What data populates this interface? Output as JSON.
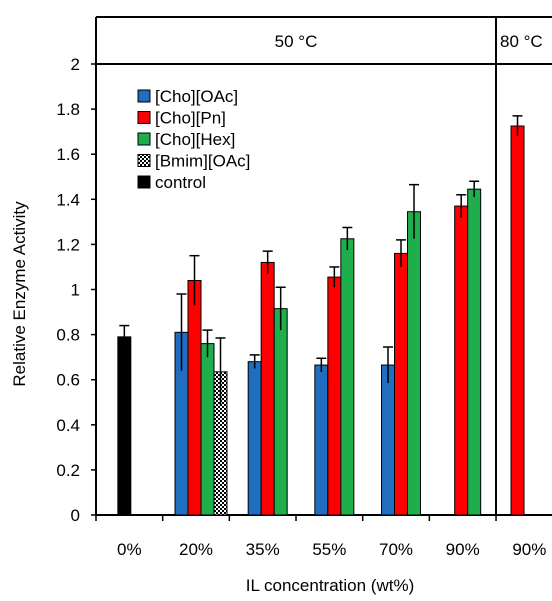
{
  "chart_data": {
    "type": "bar",
    "ylabel": "Relative Enzyme Activity",
    "xlabel": "IL concentration (wt%)",
    "ylim": [
      0,
      2
    ],
    "yticks": [
      "0",
      "0.2",
      "0.4",
      "0.6",
      "0.8",
      "1",
      "1.2",
      "1.4",
      "1.6",
      "1.8",
      "2"
    ],
    "grid": false,
    "legend_position": "top-left",
    "panels": [
      {
        "label": "50 °C",
        "categories": [
          "0%",
          "20%",
          "35%",
          "55%",
          "70%",
          "90%"
        ]
      },
      {
        "label": "80 °C",
        "categories": [
          "90%"
        ]
      }
    ],
    "categories": [
      "0%",
      "20%",
      "35%",
      "55%",
      "70%",
      "90%",
      "90%"
    ],
    "series": [
      {
        "name": "[Cho][OAc]",
        "color": "#1f6ec0",
        "pattern": "solid",
        "values": [
          null,
          0.81,
          0.68,
          0.665,
          0.665,
          null,
          null
        ],
        "errors": [
          null,
          0.17,
          0.03,
          0.03,
          0.08,
          null,
          null
        ]
      },
      {
        "name": "[Cho][Pn]",
        "color": "#ff0000",
        "pattern": "solid",
        "values": [
          null,
          1.04,
          1.12,
          1.055,
          1.16,
          1.37,
          1.725
        ],
        "errors": [
          null,
          0.11,
          0.05,
          0.045,
          0.06,
          0.05,
          0.045
        ]
      },
      {
        "name": "[Cho][Hex]",
        "color": "#1fae4c",
        "pattern": "solid",
        "values": [
          null,
          0.76,
          0.915,
          1.225,
          1.345,
          1.445,
          null
        ],
        "errors": [
          null,
          0.06,
          0.095,
          0.05,
          0.12,
          0.035,
          null
        ]
      },
      {
        "name": "[Bmim][OAc]",
        "color": "#000000",
        "pattern": "checker",
        "values": [
          null,
          0.635,
          null,
          null,
          null,
          null,
          null
        ],
        "errors": [
          null,
          0.15,
          null,
          null,
          null,
          null,
          null
        ]
      },
      {
        "name": "control",
        "color": "#000000",
        "pattern": "solid",
        "values": [
          0.79,
          null,
          null,
          null,
          null,
          null,
          null
        ],
        "errors": [
          0.05,
          null,
          null,
          null,
          null,
          null,
          null
        ]
      }
    ]
  }
}
